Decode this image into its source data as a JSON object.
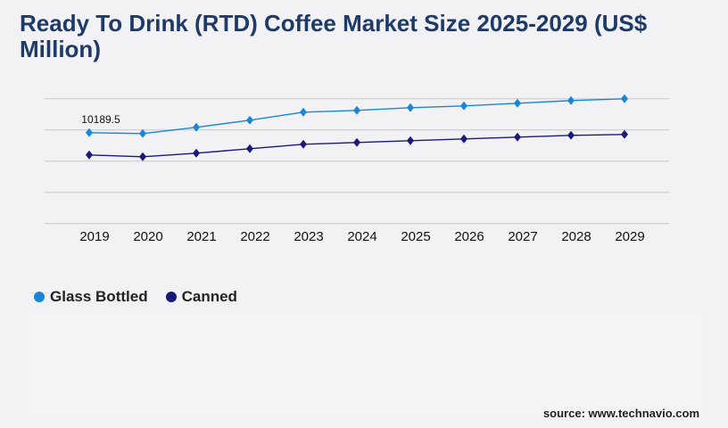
{
  "title": "Ready To Drink (RTD) Coffee Market Size 2025-2029 (US$ Million)",
  "source": "source: www.technavio.com",
  "chart_data": {
    "type": "line",
    "title": "Ready To Drink (RTD) Coffee Market Size 2025-2029 (US$ Million)",
    "categories": [
      "2019",
      "2020",
      "2021",
      "2022",
      "2023",
      "2024",
      "2025",
      "2026",
      "2027",
      "2028",
      "2029"
    ],
    "ylim": [
      0,
      14000
    ],
    "grid": true,
    "legend_position": "bottom-left",
    "series": [
      {
        "name": "Glass Bottled",
        "color": "#1a86d6",
        "values": [
          10189.5,
          10090,
          10790,
          11590,
          12490,
          12690,
          12990,
          13190,
          13490,
          13790,
          13990
        ]
      },
      {
        "name": "Canned",
        "color": "#1a1a78",
        "values": [
          7690,
          7490,
          7890,
          8390,
          8890,
          9090,
          9290,
          9490,
          9690,
          9890,
          9990
        ]
      }
    ],
    "data_labels": [
      {
        "series": "Glass Bottled",
        "category": "2019",
        "text": "10189.5"
      }
    ]
  }
}
